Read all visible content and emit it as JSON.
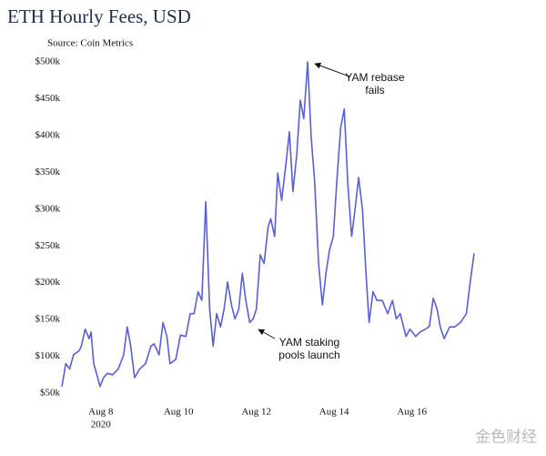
{
  "chart_data": {
    "type": "line",
    "title": "ETH Hourly Fees, USD",
    "subtitle": "Source: Coin Metrics",
    "x": [
      7.0,
      7.1,
      7.2,
      7.3,
      7.45,
      7.5,
      7.6,
      7.7,
      7.75,
      7.82,
      7.9,
      7.98,
      8.07,
      8.17,
      8.3,
      8.45,
      8.59,
      8.68,
      8.77,
      8.87,
      9.0,
      9.15,
      9.29,
      9.37,
      9.5,
      9.6,
      9.7,
      9.78,
      9.93,
      10.05,
      10.19,
      10.3,
      10.4,
      10.5,
      10.6,
      10.7,
      10.8,
      10.89,
      10.98,
      11.08,
      11.17,
      11.26,
      11.36,
      11.45,
      11.55,
      11.64,
      11.73,
      11.83,
      11.92,
      12.0,
      12.1,
      12.2,
      12.3,
      12.37,
      12.47,
      12.55,
      12.65,
      12.76,
      12.85,
      12.94,
      13.04,
      13.13,
      13.22,
      13.32,
      13.41,
      13.5,
      13.6,
      13.7,
      13.79,
      13.88,
      13.98,
      14.07,
      14.17,
      14.26,
      14.35,
      14.45,
      14.54,
      14.63,
      14.73,
      14.82,
      14.9,
      15.0,
      15.1,
      15.24,
      15.38,
      15.5,
      15.6,
      15.7,
      15.85,
      15.95,
      16.1,
      16.2,
      16.35,
      16.45,
      16.55,
      16.65,
      16.73,
      16.83,
      16.97,
      17.1,
      17.25,
      17.4,
      17.5,
      17.6
    ],
    "series": [
      {
        "name": "ETH hourly fees",
        "color": "#5a5fd4",
        "values": [
          59,
          90,
          83,
          102,
          108,
          114,
          137,
          124,
          133,
          90,
          75,
          59,
          71,
          77,
          75,
          83,
          102,
          140,
          114,
          71,
          83,
          90,
          114,
          117,
          102,
          146,
          127,
          90,
          96,
          129,
          127,
          158,
          158,
          188,
          176,
          310,
          164,
          114,
          158,
          140,
          164,
          201,
          170,
          151,
          164,
          213,
          176,
          146,
          151,
          164,
          238,
          226,
          275,
          287,
          263,
          349,
          312,
          361,
          405,
          324,
          374,
          448,
          423,
          500,
          399,
          337,
          226,
          170,
          213,
          244,
          263,
          337,
          411,
          436,
          337,
          263,
          300,
          343,
          300,
          213,
          146,
          188,
          176,
          176,
          158,
          176,
          151,
          158,
          127,
          137,
          127,
          133,
          137,
          141,
          179,
          164,
          140,
          124,
          140,
          140,
          146,
          158,
          201,
          240
        ]
      }
    ],
    "xlim": [
      7.0,
      17.6
    ],
    "xticks": [
      {
        "value": 8,
        "label": "Aug 8"
      },
      {
        "value": 10,
        "label": "Aug 10"
      },
      {
        "value": 12,
        "label": "Aug 12"
      },
      {
        "value": 14,
        "label": "Aug 14"
      },
      {
        "value": 16,
        "label": "Aug 16"
      }
    ],
    "x_year_label": "2020",
    "ylim": [
      50,
      500
    ],
    "yticks": [
      {
        "value": 50,
        "label": "$50k"
      },
      {
        "value": 100,
        "label": "$100k"
      },
      {
        "value": 150,
        "label": "$150k"
      },
      {
        "value": 200,
        "label": "$200k"
      },
      {
        "value": 250,
        "label": "$250k"
      },
      {
        "value": 300,
        "label": "$300k"
      },
      {
        "value": 350,
        "label": "$350k"
      },
      {
        "value": 400,
        "label": "$400k"
      },
      {
        "value": 450,
        "label": "$450k"
      },
      {
        "value": 500,
        "label": "$500k"
      }
    ],
    "grid": false,
    "annotations": [
      {
        "lines": [
          "YAM rebase",
          "fails"
        ]
      },
      {
        "lines": [
          "YAM staking",
          "pools launch"
        ]
      }
    ],
    "watermark": "金色财经"
  }
}
